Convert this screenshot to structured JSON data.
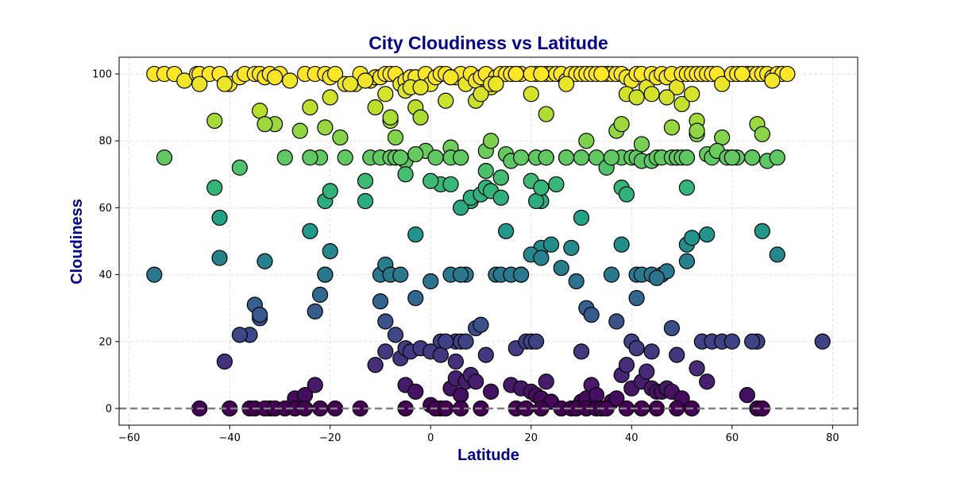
{
  "colors": {
    "title": "#00008b",
    "axis_label": "#00008b",
    "grid": "#d9d9d9",
    "zero_line": "#808080",
    "marker_edge": "#000000",
    "colormap": "viridis"
  },
  "chart_data": {
    "type": "scatter",
    "title": "City Cloudiness vs Latitude",
    "xlabel": "Latitude",
    "ylabel": "Cloudiness",
    "xlim": [
      -62,
      85
    ],
    "ylim": [
      -5,
      105
    ],
    "xticks": [
      -60,
      -40,
      -20,
      0,
      20,
      40,
      60,
      80
    ],
    "yticks": [
      0,
      20,
      40,
      60,
      80,
      100
    ],
    "grid": true,
    "reference_line": {
      "y": 0,
      "style": "dashed"
    },
    "color_by": "y",
    "x": [
      -55,
      -53,
      -51,
      -49,
      -46.5,
      -46,
      -44,
      -42,
      -40,
      -38,
      -37,
      -35,
      -34,
      -33,
      -32,
      -30,
      -28,
      -25,
      -23,
      -21,
      -20,
      -19,
      -17,
      -15,
      -14,
      -12,
      -11,
      -10,
      -9,
      -8,
      -7,
      -6,
      -5,
      -4,
      -3,
      -2,
      -1,
      0,
      1,
      2,
      3,
      4,
      5,
      6,
      7,
      8,
      9,
      10,
      11,
      12,
      13,
      14,
      15,
      16,
      17,
      18,
      20,
      21,
      22,
      23,
      24,
      25,
      26,
      27,
      28,
      29,
      30,
      31,
      32,
      34,
      35,
      36,
      37,
      38,
      39,
      40,
      41,
      42,
      43,
      44,
      45,
      46,
      47,
      48,
      49,
      50,
      51,
      52,
      53,
      54,
      55,
      56,
      57,
      58,
      60,
      61,
      62,
      63,
      64,
      65,
      66,
      67,
      68,
      69,
      70,
      71,
      -41,
      -31,
      -20,
      -18,
      -16,
      -13,
      -9,
      -7,
      -5,
      -4,
      -2,
      3,
      4,
      9,
      10,
      12,
      13,
      17,
      20,
      22,
      23,
      27,
      33,
      34,
      39,
      41,
      44,
      47,
      50,
      52,
      53,
      58,
      62,
      65,
      68,
      -53,
      -46,
      -43,
      -38,
      -34,
      -31,
      -29,
      -24,
      -22,
      -21,
      -17,
      -13,
      -12,
      -10,
      -8,
      -7,
      -5,
      -3,
      -1,
      1,
      2,
      4,
      6,
      8,
      11,
      12,
      14,
      15,
      16,
      17,
      21,
      22,
      27,
      33,
      35,
      37,
      38,
      40,
      41,
      42,
      44,
      45,
      46,
      48,
      49,
      51,
      53,
      55,
      56,
      57,
      59,
      61,
      64,
      66,
      67,
      69,
      -43,
      -21,
      -20,
      -13,
      -11,
      -8,
      -5,
      -2,
      0,
      4,
      6,
      8,
      10,
      11,
      12,
      14,
      20,
      21,
      22,
      23,
      25,
      36,
      38,
      39,
      51,
      60,
      -42,
      -33,
      -26,
      -24,
      -8,
      -7,
      -6,
      -3,
      4,
      6,
      11,
      14,
      18,
      21,
      23,
      27,
      30,
      31,
      38,
      42,
      48,
      49,
      50,
      51,
      53,
      60,
      64,
      -55,
      -24,
      -21,
      -20,
      -10,
      -9,
      -8,
      -6,
      -3,
      4,
      7,
      13,
      15,
      18,
      22,
      26,
      30,
      36,
      38,
      41,
      42,
      44,
      46,
      47,
      51,
      52,
      55,
      66,
      69,
      -42,
      -35,
      -34,
      -22,
      -10,
      -9,
      -7,
      -3,
      0,
      2,
      5,
      6,
      9,
      10,
      11,
      14,
      16,
      18,
      20,
      22,
      24,
      28,
      29,
      31,
      32,
      37,
      41,
      45,
      48,
      -41,
      -36,
      -33,
      -23,
      -21,
      -11,
      -9,
      -6,
      -5,
      -4,
      -2,
      0,
      2,
      3,
      5,
      6,
      7,
      17,
      19,
      20,
      21,
      30,
      40,
      44,
      49,
      51,
      54,
      56,
      58,
      60,
      65,
      78,
      -38,
      -34,
      -32,
      -27,
      -25,
      -23,
      -5,
      -3,
      0,
      2,
      4,
      5,
      6,
      7,
      8,
      9,
      12,
      16,
      18,
      20,
      21,
      22,
      23,
      24,
      30,
      31,
      32,
      33,
      36,
      37,
      38,
      39,
      40,
      41,
      42,
      43,
      44,
      45,
      46,
      47,
      48,
      50,
      53,
      55,
      63,
      64,
      -46,
      -40,
      -36,
      -35,
      -33,
      -31,
      -29,
      -27,
      -25,
      -22,
      -19,
      -14,
      -5,
      1,
      3,
      6,
      10,
      17,
      19,
      22,
      26,
      28,
      29,
      31,
      33,
      34,
      35,
      39,
      42,
      45,
      49,
      52,
      65,
      66
    ],
    "y": [
      100,
      100,
      100,
      98,
      100,
      100,
      100,
      100,
      97,
      99,
      100,
      100,
      100,
      99,
      100,
      100,
      98,
      100,
      100,
      100,
      99,
      100,
      97,
      97,
      100,
      98,
      99,
      99,
      100,
      100,
      100,
      97,
      98,
      99,
      99,
      96,
      100,
      97,
      99,
      100,
      100,
      99,
      99,
      100,
      97,
      100,
      98,
      99,
      100,
      96,
      99,
      100,
      100,
      100,
      100,
      100,
      94,
      100,
      100,
      100,
      100,
      100,
      100,
      98,
      100,
      100,
      100,
      100,
      100,
      100,
      100,
      100,
      100,
      100,
      99,
      98,
      100,
      100,
      96,
      100,
      99,
      100,
      99,
      100,
      96,
      100,
      100,
      100,
      100,
      100,
      100,
      100,
      100,
      97,
      100,
      100,
      100,
      100,
      100,
      100,
      100,
      100,
      99,
      100,
      100,
      100,
      97,
      85,
      93,
      81,
      97,
      98,
      94,
      75,
      95,
      96,
      96,
      92,
      99,
      92,
      94,
      97,
      97,
      100,
      100,
      100,
      88,
      97,
      100,
      100,
      94,
      93,
      94,
      93,
      91,
      94,
      86,
      81,
      100,
      85,
      98,
      75,
      97,
      86,
      72,
      89,
      99,
      75,
      90,
      75,
      84,
      75,
      68,
      75,
      75,
      86,
      81,
      74,
      90,
      77,
      75,
      67,
      78,
      75,
      62,
      77,
      80,
      69,
      76,
      74,
      100,
      75,
      62,
      75,
      75,
      72,
      83,
      75,
      75,
      75,
      74,
      74,
      75,
      75,
      75,
      75,
      75,
      82,
      76,
      75,
      77,
      75,
      75,
      75,
      82,
      74,
      75,
      66,
      62,
      65,
      62,
      90,
      87,
      70,
      87,
      68,
      67,
      60,
      63,
      64,
      66,
      65,
      63,
      68,
      62,
      66,
      75,
      67,
      75,
      66,
      64,
      66,
      75,
      57,
      85,
      83,
      75,
      75,
      75,
      75,
      76,
      75,
      75,
      71,
      69,
      75,
      75,
      75,
      75,
      75,
      80,
      85,
      79,
      84,
      75,
      75,
      75,
      83,
      75,
      75,
      40,
      53,
      40,
      47,
      40,
      43,
      40,
      40,
      52,
      40,
      40,
      40,
      53,
      40,
      48,
      42,
      57,
      40,
      49,
      40,
      40,
      40,
      40,
      41,
      49,
      51,
      52,
      53,
      46,
      45,
      31,
      27,
      34,
      32,
      26,
      22,
      33,
      38,
      20,
      20,
      40,
      24,
      25,
      16,
      40,
      40,
      40,
      46,
      45,
      49,
      48,
      38,
      30,
      28,
      26,
      33,
      39,
      24,
      14,
      22,
      44,
      29,
      40,
      13,
      17,
      15,
      18,
      17,
      18,
      17,
      16,
      20,
      14,
      20,
      20,
      18,
      20,
      20,
      20,
      17,
      20,
      17,
      16,
      44,
      20,
      20,
      20,
      20,
      20,
      20,
      22,
      28,
      0,
      3,
      4,
      7,
      7,
      5,
      1,
      0,
      6,
      9,
      4,
      8,
      10,
      8,
      5,
      7,
      6,
      5,
      4,
      3,
      8,
      2,
      2,
      3,
      7,
      4,
      2,
      3,
      10,
      13,
      6,
      18,
      8,
      11,
      6,
      5,
      5,
      6,
      5,
      3,
      12,
      8,
      4,
      20,
      0,
      0,
      0,
      0,
      0,
      0,
      0,
      0,
      0,
      0,
      0,
      0,
      0,
      0,
      0,
      0,
      0,
      0,
      0,
      0,
      0,
      0,
      0,
      0,
      0,
      0,
      0,
      0,
      0,
      0,
      0,
      0,
      0,
      0
    ]
  }
}
